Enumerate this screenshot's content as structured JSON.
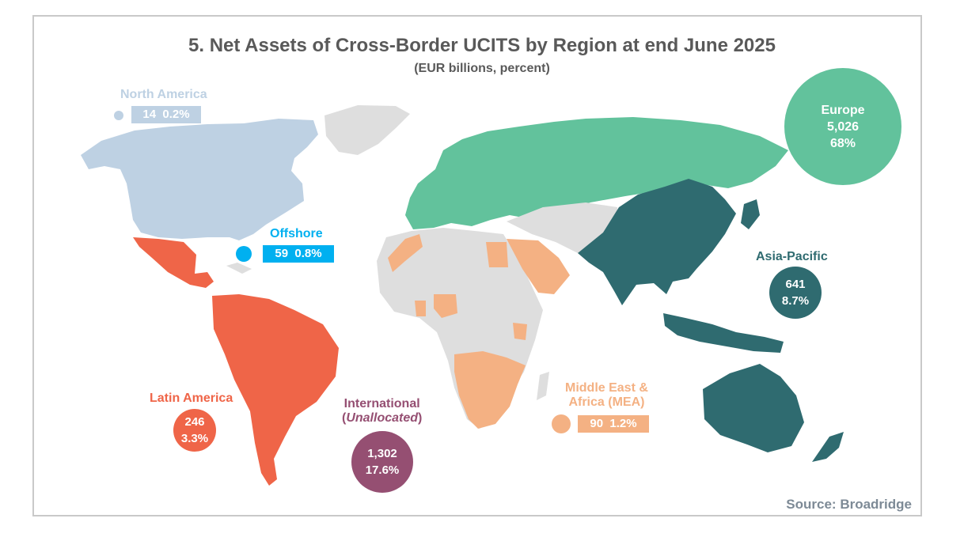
{
  "title": "5. Net Assets of Cross-Border UCITS by Region at end June 2025",
  "subtitle": "(EUR billions, percent)",
  "source": "Source: Broadridge",
  "colors": {
    "north_america": "#bed1e3",
    "offshore": "#00b0f0",
    "latin_america": "#ef6548",
    "mea": "#f4b183",
    "europe": "#62c29c",
    "asia_pacific": "#2f6b70",
    "international": "#954f72",
    "unassigned_land": "#dedede"
  },
  "regions": {
    "north_america": {
      "name": "North America",
      "value": "14",
      "share": "0.2%"
    },
    "offshore": {
      "name": "Offshore",
      "value": "59",
      "share": "0.8%"
    },
    "latin_america": {
      "name": "Latin America",
      "value": "246",
      "share": "3.3%"
    },
    "international": {
      "name_prefix": "International",
      "name_paren_open": "(",
      "name_italic": "Unallocated",
      "name_paren_close": ")",
      "value": "1,302",
      "share": "17.6%"
    },
    "mea": {
      "name_line1": "Middle East &",
      "name_line2": "Africa (MEA)",
      "value": "90",
      "share": "1.2%"
    },
    "europe": {
      "name": "Europe",
      "value": "5,026",
      "share": "68%"
    },
    "asia_pacific": {
      "name": "Asia-Pacific",
      "value": "641",
      "share": "8.7%"
    }
  }
}
